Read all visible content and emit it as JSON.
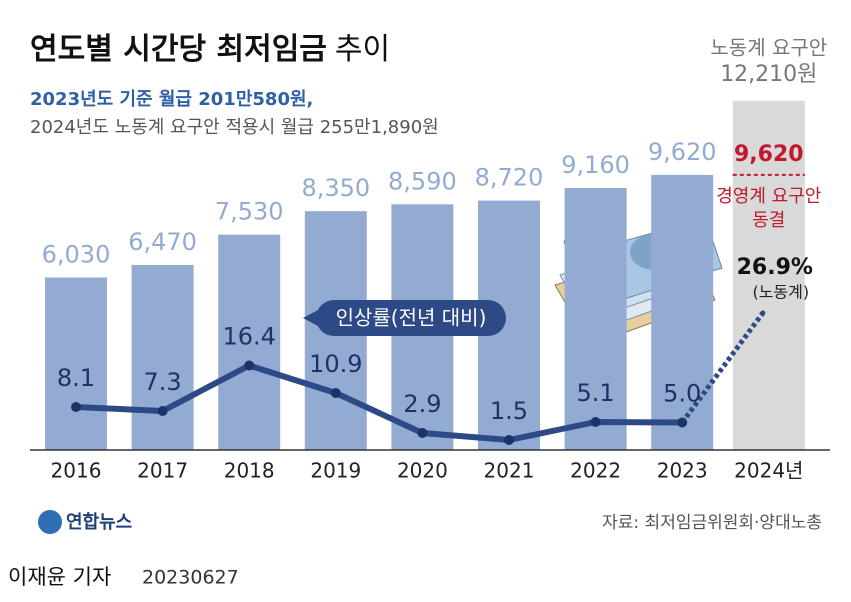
{
  "chart_data": {
    "type": "bar-line",
    "title": "연도별 시간당 최저임금",
    "title_suffix": "추이",
    "subtitle": [
      "2023년도 기준 월급 201만580원,",
      "2024년도 노동계 요구안 적용시 월급 255만1,890원"
    ],
    "categories": [
      "2016",
      "2017",
      "2018",
      "2019",
      "2020",
      "2021",
      "2022",
      "2023",
      "2024년"
    ],
    "series": [
      {
        "color": "#93abd3",
        "values": [
          6030,
          6470,
          7530,
          8350,
          8590,
          8720,
          9160,
          9620,
          null
        ],
        "value_labels": [
          "6,030",
          "6,470",
          "7,530",
          "8,350",
          "8,590",
          "8,720",
          "9,160",
          "9,620",
          null
        ]
      },
      {
        "name": "인상률(전년 대비)",
        "color": "#2d4a86",
        "values": [
          8.1,
          7.3,
          16.4,
          10.9,
          2.9,
          1.5,
          5.1,
          5.0,
          26.9
        ],
        "value_labels": [
          "8.1",
          "7.3",
          "16.4",
          "10.9",
          "2.9",
          "1.5",
          "5.1",
          "5.0",
          "26.9%"
        ]
      }
    ],
    "annotations": {
      "labor_proposal": {
        "label": "노동계 요구안",
        "value": 12210,
        "value_label": "12,210원",
        "color": "#d9d9d9"
      },
      "employer_proposal": {
        "value": 9620,
        "value_label": "9,620",
        "label": [
          "경영계 요구안",
          "동결"
        ],
        "color": "#c0182c"
      },
      "rate_note": "(노동계)"
    },
    "logo": "연합뉴스",
    "source": "자료: 최저임금위원회·양대노총",
    "byline": "이재윤 기자",
    "date": "20230627"
  }
}
